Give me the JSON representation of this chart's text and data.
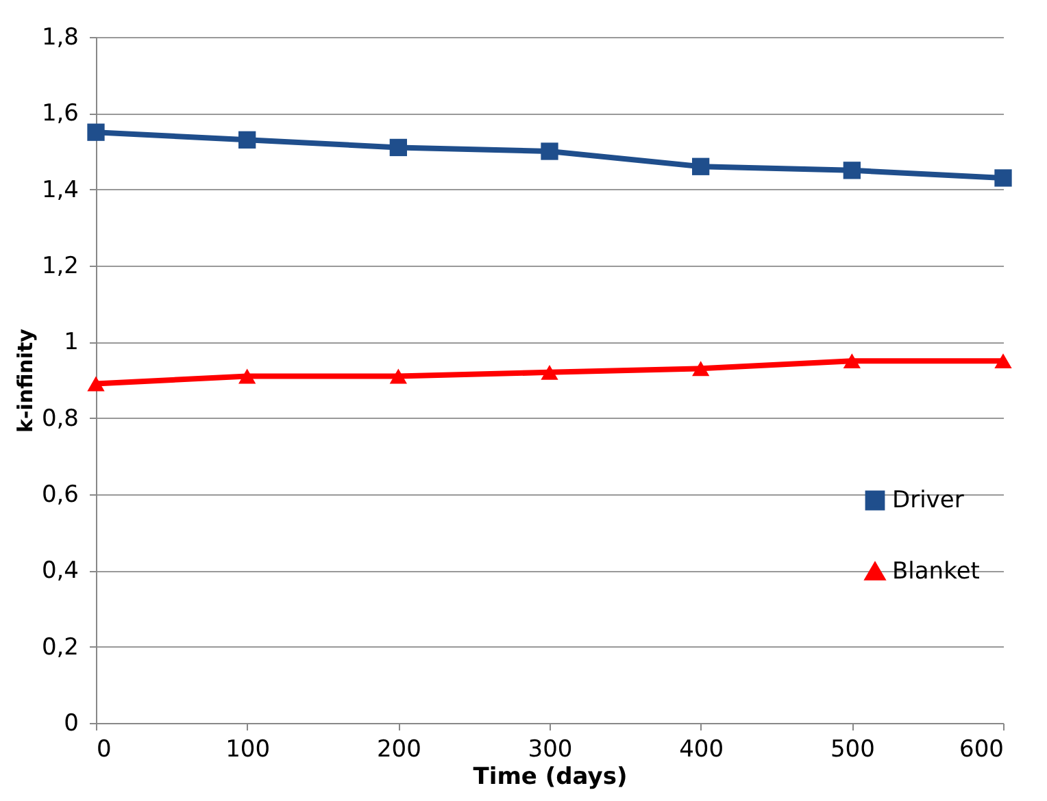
{
  "chart_data": {
    "type": "line",
    "xlabel": "Time (days)",
    "ylabel": "k-infinity",
    "x": [
      0,
      100,
      200,
      300,
      400,
      500,
      600
    ],
    "series": [
      {
        "name": "Driver",
        "color": "#1f4e8c",
        "marker": "square",
        "values": [
          1.55,
          1.53,
          1.51,
          1.5,
          1.46,
          1.45,
          1.43
        ]
      },
      {
        "name": "Blanket",
        "color": "#ff0000",
        "marker": "triangle",
        "values": [
          0.89,
          0.91,
          0.91,
          0.92,
          0.93,
          0.95,
          0.95
        ]
      }
    ],
    "xlim": [
      0,
      600
    ],
    "xticks": [
      0,
      100,
      200,
      300,
      400,
      500,
      600
    ],
    "ylim": [
      0,
      1.8
    ],
    "yticks": [
      0,
      {
        "value": 0.2,
        "label": "0,2"
      },
      {
        "value": 0.4,
        "label": "0,4"
      },
      {
        "value": 0.6,
        "label": "0,6"
      },
      {
        "value": 0.8,
        "label": "0,8"
      },
      1,
      {
        "value": 1.2,
        "label": "1,2"
      },
      {
        "value": 1.4,
        "label": "1,4"
      },
      {
        "value": 1.6,
        "label": "1,6"
      },
      {
        "value": 1.8,
        "label": "1,8"
      }
    ],
    "grid": "y",
    "legend": "bottom right",
    "line_style": "solid"
  }
}
